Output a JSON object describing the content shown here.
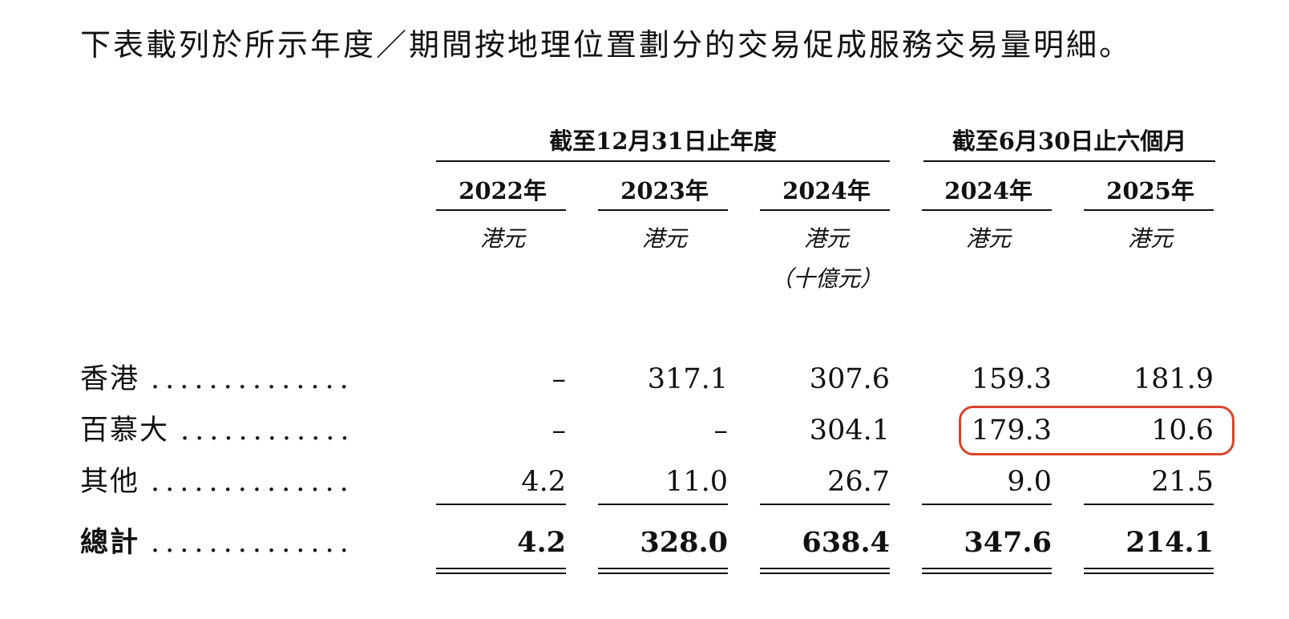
{
  "intro_text": "下表載列於所示年度／期間按地理位置劃分的交易促成服務交易量明細。",
  "group_headers": {
    "annual": "截至12月31日止年度",
    "six_months": "截至6月30日止六個月"
  },
  "columns": [
    {
      "year": "2022年",
      "unit": "港元",
      "unit_note": ""
    },
    {
      "year": "2023年",
      "unit": "港元",
      "unit_note": ""
    },
    {
      "year": "2024年",
      "unit": "港元",
      "unit_note": "（十億元）"
    },
    {
      "year": "2024年",
      "unit": "港元",
      "unit_note": ""
    },
    {
      "year": "2025年",
      "unit": "港元",
      "unit_note": ""
    }
  ],
  "rows": [
    {
      "label": "香港",
      "dots": "..............",
      "values": [
        "–",
        "317.1",
        "307.6",
        "159.3",
        "181.9"
      ]
    },
    {
      "label": "百慕大",
      "dots": "............",
      "values": [
        "–",
        "–",
        "304.1",
        "179.3",
        "10.6"
      ]
    },
    {
      "label": "其他",
      "dots": "..............",
      "values": [
        "4.2",
        "11.0",
        "26.7",
        "9.0",
        "21.5"
      ]
    }
  ],
  "total_row": {
    "label": "總計",
    "dots": "..............",
    "values": [
      "4.2",
      "328.0",
      "638.4",
      "347.6",
      "214.1"
    ]
  },
  "highlight_color": "#d9452b"
}
